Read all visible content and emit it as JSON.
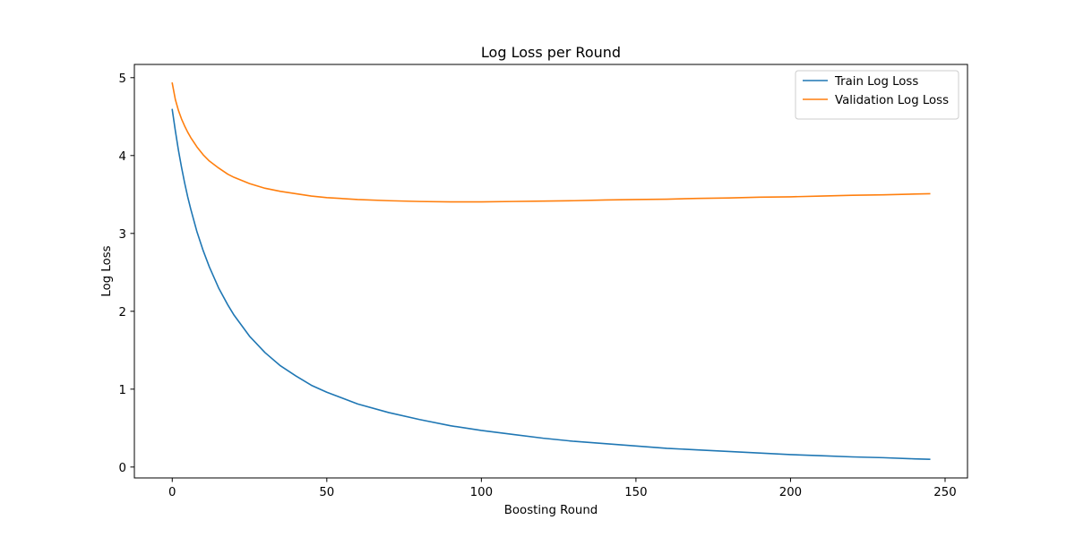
{
  "chart_data": {
    "type": "line",
    "title": "Log Loss per Round",
    "xlabel": "Boosting Round",
    "ylabel": "Log Loss",
    "xlim": [
      -12.25,
      257.25
    ],
    "ylim": [
      -0.14,
      5.17
    ],
    "xticks": [
      0,
      50,
      100,
      150,
      200,
      250
    ],
    "yticks": [
      0,
      1,
      2,
      3,
      4,
      5
    ],
    "grid": false,
    "legend_position": "top-right",
    "series": [
      {
        "name": "Train Log Loss",
        "color": "#1f77b4",
        "x": [
          0,
          1,
          2,
          3,
          4,
          5,
          6,
          8,
          10,
          12,
          15,
          18,
          20,
          25,
          30,
          35,
          40,
          45,
          50,
          60,
          70,
          80,
          90,
          100,
          110,
          120,
          130,
          140,
          150,
          160,
          170,
          180,
          190,
          200,
          210,
          220,
          230,
          240,
          245
        ],
        "values": [
          4.59,
          4.32,
          4.07,
          3.85,
          3.65,
          3.47,
          3.31,
          3.02,
          2.78,
          2.57,
          2.3,
          2.08,
          1.95,
          1.68,
          1.47,
          1.3,
          1.17,
          1.05,
          0.96,
          0.81,
          0.7,
          0.61,
          0.53,
          0.47,
          0.42,
          0.37,
          0.33,
          0.3,
          0.27,
          0.24,
          0.22,
          0.2,
          0.18,
          0.16,
          0.145,
          0.13,
          0.12,
          0.105,
          0.1
        ]
      },
      {
        "name": "Validation Log Loss",
        "color": "#ff7f0e",
        "x": [
          0,
          1,
          2,
          3,
          4,
          5,
          6,
          8,
          10,
          12,
          15,
          18,
          20,
          25,
          30,
          35,
          40,
          45,
          50,
          60,
          70,
          80,
          90,
          100,
          110,
          120,
          130,
          140,
          150,
          160,
          170,
          180,
          190,
          200,
          210,
          220,
          230,
          240,
          245
        ],
        "values": [
          4.93,
          4.72,
          4.58,
          4.47,
          4.38,
          4.3,
          4.23,
          4.11,
          4.01,
          3.93,
          3.84,
          3.76,
          3.72,
          3.64,
          3.58,
          3.54,
          3.51,
          3.48,
          3.46,
          3.435,
          3.42,
          3.41,
          3.405,
          3.405,
          3.41,
          3.415,
          3.42,
          3.43,
          3.435,
          3.44,
          3.45,
          3.455,
          3.465,
          3.47,
          3.48,
          3.49,
          3.495,
          3.505,
          3.51
        ]
      }
    ]
  }
}
